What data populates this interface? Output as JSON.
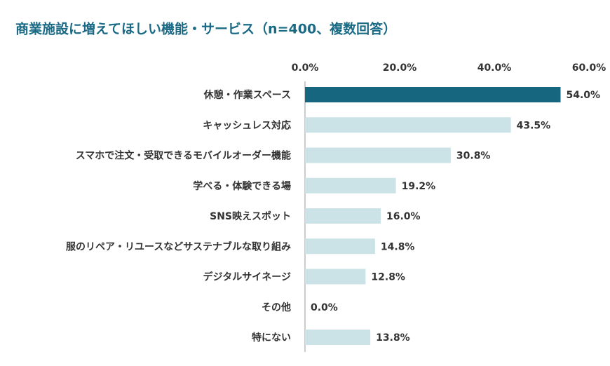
{
  "chart_data": {
    "type": "bar",
    "orientation": "horizontal",
    "title": "商業施設に増えてほしい機能・サービス（n=400、複数回答）",
    "categories": [
      "休憩・作業スペース",
      "キャッシュレス対応",
      "スマホで注文・受取できるモバイルオーダー機能",
      "学べる・体験できる場",
      "SNS映えスポット",
      "服のリペア・リユースなどサステナブルな取り組み",
      "デジタルサイネージ",
      "その他",
      "特にない"
    ],
    "values": [
      54.0,
      43.5,
      30.8,
      19.2,
      16.0,
      14.8,
      12.8,
      0.0,
      13.8
    ],
    "value_labels": [
      "54.0%",
      "43.5%",
      "30.8%",
      "19.2%",
      "16.0%",
      "14.8%",
      "12.8%",
      "0.0%",
      "13.8%"
    ],
    "colors": [
      "#166680",
      "#cbe3e7",
      "#cbe3e7",
      "#cbe3e7",
      "#cbe3e7",
      "#cbe3e7",
      "#cbe3e7",
      "#cbe3e7",
      "#cbe3e7"
    ],
    "xlim": [
      0,
      60
    ],
    "xticks": [
      {
        "value": 0,
        "label": "0.0%"
      },
      {
        "value": 20,
        "label": "20.0%"
      },
      {
        "value": 40,
        "label": "40.0%"
      },
      {
        "value": 60,
        "label": "60.0%"
      }
    ],
    "grid": false
  }
}
